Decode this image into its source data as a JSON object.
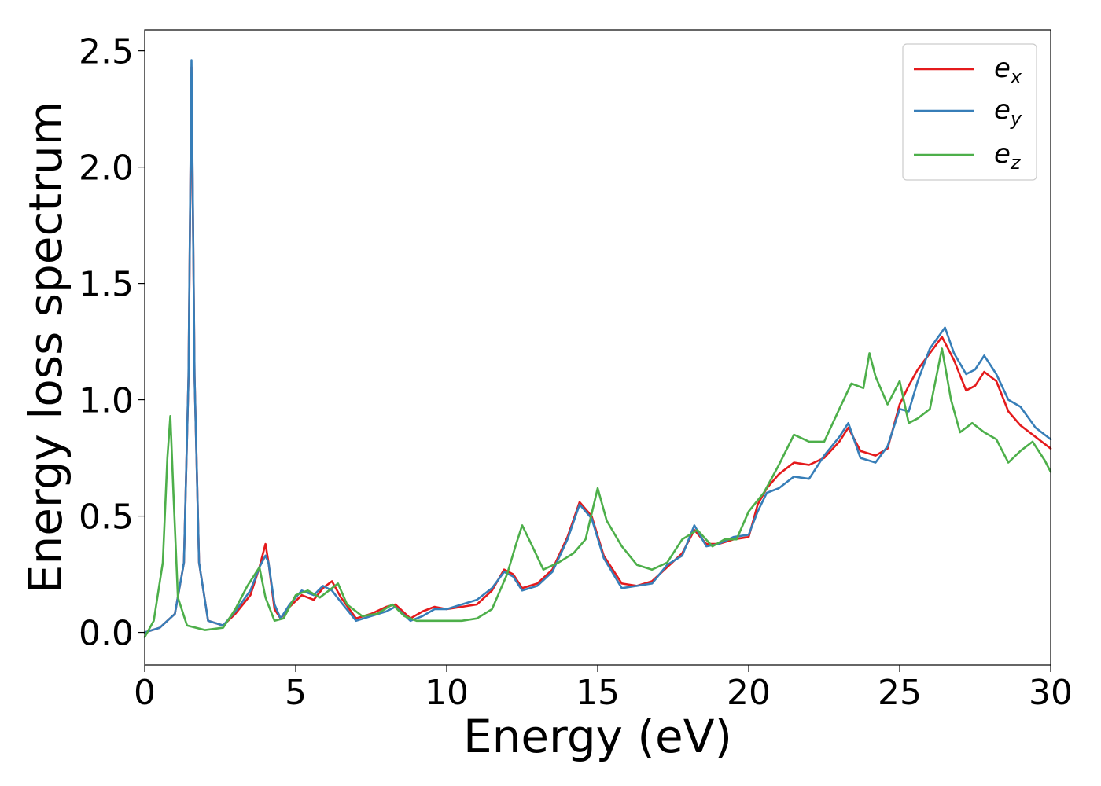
{
  "chart_data": {
    "type": "line",
    "title": "",
    "xlabel": "Energy (eV)",
    "ylabel": "Energy loss spectrum",
    "xlim": [
      0,
      30
    ],
    "ylim": [
      -0.14,
      2.59
    ],
    "xticks": [
      "0",
      "5",
      "10",
      "15",
      "20",
      "25",
      "30"
    ],
    "xtick_values": [
      0,
      5,
      10,
      15,
      20,
      25,
      30
    ],
    "yticks": [
      "0.0",
      "0.5",
      "1.0",
      "1.5",
      "2.0",
      "2.5"
    ],
    "ytick_values": [
      0.0,
      0.5,
      1.0,
      1.5,
      2.0,
      2.5
    ],
    "grid": false,
    "legend_position": "top-right",
    "series": [
      {
        "name": "e",
        "subscript": "x",
        "color": "#e41a1c",
        "x": [
          0.0,
          0.5,
          1.0,
          1.3,
          1.45,
          1.55,
          1.65,
          1.8,
          2.1,
          2.6,
          3.0,
          3.5,
          3.8,
          4.0,
          4.1,
          4.3,
          4.5,
          4.8,
          5.2,
          5.6,
          5.9,
          6.2,
          6.5,
          7.0,
          7.5,
          8.0,
          8.3,
          8.8,
          9.2,
          9.6,
          10.0,
          10.5,
          11.0,
          11.5,
          11.9,
          12.2,
          12.5,
          13.0,
          13.5,
          14.0,
          14.4,
          14.8,
          15.2,
          15.8,
          16.3,
          16.8,
          17.3,
          17.8,
          18.2,
          18.6,
          19.0,
          19.5,
          20.0,
          20.3,
          20.6,
          21.0,
          21.5,
          22.0,
          22.5,
          23.0,
          23.3,
          23.7,
          24.2,
          24.6,
          25.0,
          25.3,
          25.6,
          26.0,
          26.4,
          26.8,
          27.2,
          27.5,
          27.8,
          28.2,
          28.6,
          29.0,
          29.5,
          30.0
        ],
        "y": [
          0.0,
          0.02,
          0.08,
          0.3,
          1.1,
          2.43,
          1.1,
          0.3,
          0.05,
          0.03,
          0.08,
          0.16,
          0.28,
          0.38,
          0.3,
          0.1,
          0.06,
          0.11,
          0.16,
          0.14,
          0.19,
          0.22,
          0.15,
          0.06,
          0.08,
          0.11,
          0.12,
          0.06,
          0.09,
          0.11,
          0.1,
          0.11,
          0.12,
          0.18,
          0.27,
          0.25,
          0.19,
          0.21,
          0.27,
          0.41,
          0.56,
          0.5,
          0.33,
          0.21,
          0.2,
          0.22,
          0.28,
          0.34,
          0.44,
          0.38,
          0.38,
          0.4,
          0.41,
          0.55,
          0.62,
          0.68,
          0.73,
          0.72,
          0.75,
          0.82,
          0.88,
          0.78,
          0.76,
          0.79,
          0.98,
          1.06,
          1.13,
          1.2,
          1.27,
          1.17,
          1.04,
          1.06,
          1.12,
          1.08,
          0.95,
          0.89,
          0.84,
          0.79
        ]
      },
      {
        "name": "e",
        "subscript": "y",
        "color": "#377eb8",
        "x": [
          0.0,
          0.5,
          1.0,
          1.3,
          1.45,
          1.55,
          1.65,
          1.8,
          2.1,
          2.6,
          3.0,
          3.5,
          3.8,
          4.0,
          4.1,
          4.3,
          4.5,
          4.8,
          5.2,
          5.6,
          5.9,
          6.2,
          6.5,
          7.0,
          7.5,
          8.0,
          8.3,
          8.8,
          9.2,
          9.6,
          10.0,
          10.5,
          11.0,
          11.5,
          11.9,
          12.2,
          12.5,
          13.0,
          13.5,
          14.0,
          14.4,
          14.8,
          15.2,
          15.8,
          16.3,
          16.8,
          17.3,
          17.8,
          18.2,
          18.6,
          19.0,
          19.5,
          20.0,
          20.3,
          20.6,
          21.0,
          21.5,
          22.0,
          22.5,
          23.0,
          23.3,
          23.7,
          24.2,
          24.6,
          25.0,
          25.3,
          25.6,
          26.0,
          26.5,
          26.8,
          27.2,
          27.5,
          27.8,
          28.2,
          28.6,
          29.0,
          29.5,
          30.0
        ],
        "y": [
          0.0,
          0.02,
          0.08,
          0.3,
          1.1,
          2.46,
          1.1,
          0.3,
          0.05,
          0.03,
          0.09,
          0.18,
          0.28,
          0.33,
          0.3,
          0.12,
          0.06,
          0.12,
          0.18,
          0.16,
          0.2,
          0.18,
          0.13,
          0.05,
          0.07,
          0.09,
          0.11,
          0.05,
          0.07,
          0.1,
          0.1,
          0.12,
          0.14,
          0.19,
          0.26,
          0.24,
          0.18,
          0.2,
          0.26,
          0.4,
          0.55,
          0.49,
          0.32,
          0.19,
          0.2,
          0.21,
          0.29,
          0.33,
          0.46,
          0.37,
          0.38,
          0.41,
          0.42,
          0.52,
          0.6,
          0.62,
          0.67,
          0.66,
          0.76,
          0.84,
          0.9,
          0.75,
          0.73,
          0.8,
          0.96,
          0.95,
          1.08,
          1.22,
          1.31,
          1.2,
          1.11,
          1.13,
          1.19,
          1.11,
          1.0,
          0.97,
          0.88,
          0.83
        ]
      },
      {
        "name": "e",
        "subscript": "z",
        "color": "#4daf4a",
        "x": [
          0.0,
          0.3,
          0.6,
          0.75,
          0.85,
          0.95,
          1.1,
          1.4,
          2.0,
          2.6,
          3.0,
          3.4,
          3.8,
          4.0,
          4.3,
          4.6,
          5.0,
          5.4,
          5.8,
          6.1,
          6.4,
          6.7,
          7.2,
          7.7,
          8.2,
          8.6,
          9.0,
          9.5,
          10.0,
          10.5,
          11.0,
          11.5,
          12.0,
          12.3,
          12.5,
          12.8,
          13.2,
          13.7,
          14.2,
          14.6,
          15.0,
          15.3,
          15.8,
          16.3,
          16.8,
          17.3,
          17.8,
          18.3,
          18.8,
          19.2,
          19.6,
          20.0,
          20.5,
          21.0,
          21.5,
          22.0,
          22.5,
          23.0,
          23.4,
          23.8,
          24.0,
          24.2,
          24.6,
          25.0,
          25.3,
          25.6,
          26.0,
          26.4,
          26.7,
          27.0,
          27.4,
          27.8,
          28.2,
          28.6,
          29.0,
          29.4,
          29.8,
          30.0
        ],
        "y": [
          -0.02,
          0.05,
          0.3,
          0.75,
          0.93,
          0.6,
          0.15,
          0.03,
          0.01,
          0.02,
          0.1,
          0.2,
          0.28,
          0.15,
          0.05,
          0.06,
          0.16,
          0.18,
          0.15,
          0.18,
          0.21,
          0.12,
          0.07,
          0.08,
          0.12,
          0.07,
          0.05,
          0.05,
          0.05,
          0.05,
          0.06,
          0.1,
          0.25,
          0.38,
          0.46,
          0.38,
          0.27,
          0.3,
          0.34,
          0.4,
          0.62,
          0.48,
          0.37,
          0.29,
          0.27,
          0.3,
          0.4,
          0.44,
          0.37,
          0.4,
          0.4,
          0.52,
          0.6,
          0.72,
          0.85,
          0.82,
          0.82,
          0.96,
          1.07,
          1.05,
          1.2,
          1.1,
          0.98,
          1.08,
          0.9,
          0.92,
          0.96,
          1.22,
          1.0,
          0.86,
          0.9,
          0.86,
          0.83,
          0.73,
          0.78,
          0.82,
          0.74,
          0.69
        ]
      }
    ]
  }
}
